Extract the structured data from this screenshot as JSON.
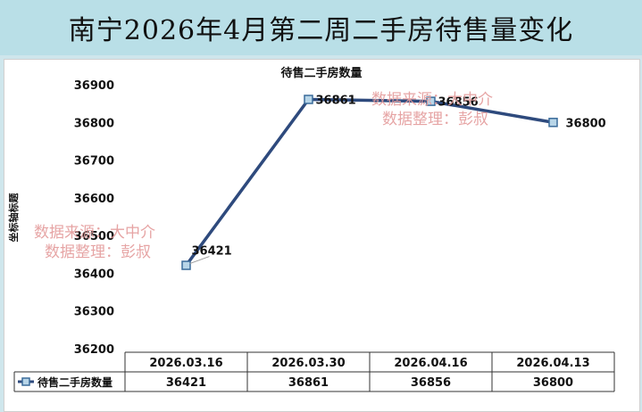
{
  "header": {
    "title": "南宁2026年4月第二周二手房待售量变化"
  },
  "watermark": {
    "line1": "数据来源：大中介",
    "line2": "数据整理：彭叔"
  },
  "chart_data": {
    "type": "line",
    "title": "待售二手房数量",
    "ylabel": "坐标轴标题",
    "xlabel": "",
    "categories": [
      "2026.03.16",
      "2026.03.30",
      "2026.04.16",
      "2026.04.13"
    ],
    "series": [
      {
        "name": "待售二手房数量",
        "values": [
          36421,
          36861,
          36856,
          36800
        ]
      }
    ],
    "ylim": [
      36200,
      36900
    ],
    "yticks": [
      36200,
      36300,
      36400,
      36500,
      36600,
      36700,
      36800,
      36900
    ],
    "data_labels": true,
    "data_table": true,
    "legend": "data-table-left",
    "grid": false,
    "colors": {
      "line": "#2e4a7d",
      "marker_fill": "#b7d5e8",
      "marker_stroke": "#3a6b9a"
    }
  }
}
